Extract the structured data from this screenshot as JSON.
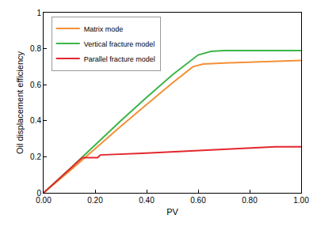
{
  "chart_data": {
    "type": "line",
    "x_label": "PV",
    "y_label": "Oil displacement efficiency",
    "series": [
      {
        "name": "Matrix mode",
        "color": "#f39036",
        "x": [
          0,
          0.1,
          0.2,
          0.3,
          0.4,
          0.5,
          0.58,
          0.62,
          0.7,
          0.8,
          1.0
        ],
        "values": [
          0,
          0.12,
          0.245,
          0.37,
          0.49,
          0.61,
          0.7,
          0.715,
          0.72,
          0.725,
          0.735
        ]
      },
      {
        "name": "Vertical fracture model",
        "color": "#3cb54a",
        "x": [
          0,
          0.1,
          0.2,
          0.3,
          0.4,
          0.5,
          0.6,
          0.65,
          0.7,
          1.0
        ],
        "values": [
          0,
          0.13,
          0.265,
          0.4,
          0.53,
          0.655,
          0.765,
          0.785,
          0.79,
          0.79
        ]
      },
      {
        "name": "Parallel fracture model",
        "color": "#e3262e",
        "x": [
          0,
          0.15,
          0.21,
          0.22,
          0.4,
          0.6,
          0.8,
          0.9,
          1.0
        ],
        "values": [
          0,
          0.195,
          0.195,
          0.21,
          0.22,
          0.235,
          0.25,
          0.255,
          0.255
        ]
      }
    ],
    "xlim": [
      0,
      1
    ],
    "xticks": [
      {
        "value": 0,
        "label": "0.00"
      },
      {
        "value": 0.2,
        "label": "0.20"
      },
      {
        "value": 0.4,
        "label": "0.40"
      },
      {
        "value": 0.6,
        "label": "0.60"
      },
      {
        "value": 0.8,
        "label": "0.80"
      },
      {
        "value": 1,
        "label": "1.00"
      }
    ],
    "ylim": [
      0,
      1
    ],
    "yticks": [
      0,
      0.2,
      0.4,
      0.6,
      0.8,
      1
    ],
    "grid": false,
    "legend": "upper left"
  }
}
